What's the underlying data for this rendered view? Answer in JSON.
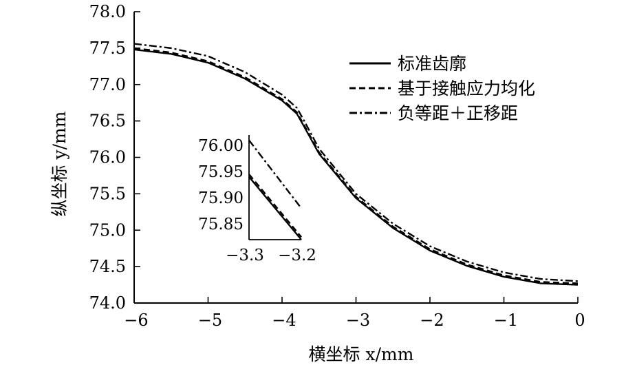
{
  "chart_data": [
    {
      "type": "line",
      "xlabel": "横坐标 x/mm",
      "ylabel": "纵坐标 y/mm",
      "xlim": [
        -6,
        0
      ],
      "ylim": [
        74.0,
        78.0
      ],
      "xticks": [
        "-6",
        "-5",
        "-4",
        "-3",
        "-2",
        "-1",
        "0"
      ],
      "yticks": [
        "74.0",
        "74.5",
        "75.0",
        "75.5",
        "76.0",
        "76.5",
        "77.0",
        "77.5",
        "78.0"
      ],
      "legend_position": "top-right",
      "series": [
        {
          "name": "标准齿廓",
          "style": "solid",
          "x": [
            -6.0,
            -5.5,
            -5.0,
            -4.5,
            -4.0,
            -3.8,
            -3.7,
            -3.5,
            -3.0,
            -2.5,
            -2.0,
            -1.5,
            -1.0,
            -0.5,
            0.0
          ],
          "y": [
            77.48,
            77.42,
            77.3,
            77.08,
            76.78,
            76.6,
            76.42,
            76.05,
            75.44,
            75.03,
            74.72,
            74.51,
            74.36,
            74.27,
            74.25
          ]
        },
        {
          "name": "基于接触应力均化",
          "style": "dashed",
          "x": [
            -6.0,
            -5.5,
            -5.0,
            -4.5,
            -4.0,
            -3.8,
            -3.7,
            -3.5,
            -3.0,
            -2.5,
            -2.0,
            -1.5,
            -1.0,
            -0.5,
            0.0
          ],
          "y": [
            77.5,
            77.44,
            77.32,
            77.1,
            76.8,
            76.62,
            76.44,
            76.07,
            75.46,
            75.05,
            74.74,
            74.53,
            74.38,
            74.29,
            74.27
          ]
        },
        {
          "name": "负等距＋正移距",
          "style": "dashdot",
          "x": [
            -6.0,
            -5.5,
            -5.0,
            -4.5,
            -4.0,
            -3.8,
            -3.7,
            -3.5,
            -3.0,
            -2.5,
            -2.0,
            -1.5,
            -1.0,
            -0.5,
            0.0
          ],
          "y": [
            77.56,
            77.5,
            77.39,
            77.17,
            76.86,
            76.68,
            76.5,
            76.12,
            75.5,
            75.09,
            74.78,
            74.57,
            74.42,
            74.33,
            74.3
          ]
        }
      ]
    },
    {
      "type": "line",
      "xlim": [
        -3.3,
        -3.2
      ],
      "ylim": [
        75.82,
        76.02
      ],
      "xticks": [
        "-3.3",
        "-3.2"
      ],
      "yticks": [
        "75.85",
        "75.90",
        "75.95",
        "76.00"
      ],
      "series": [
        {
          "style": "solid",
          "x": [
            -3.3,
            -3.2
          ],
          "y": [
            75.94,
            75.82
          ]
        },
        {
          "style": "dashed",
          "x": [
            -3.3,
            -3.2
          ],
          "y": [
            75.945,
            75.825
          ]
        },
        {
          "style": "dashdot",
          "x": [
            -3.3,
            -3.2
          ],
          "y": [
            76.01,
            75.88
          ]
        }
      ]
    }
  ]
}
